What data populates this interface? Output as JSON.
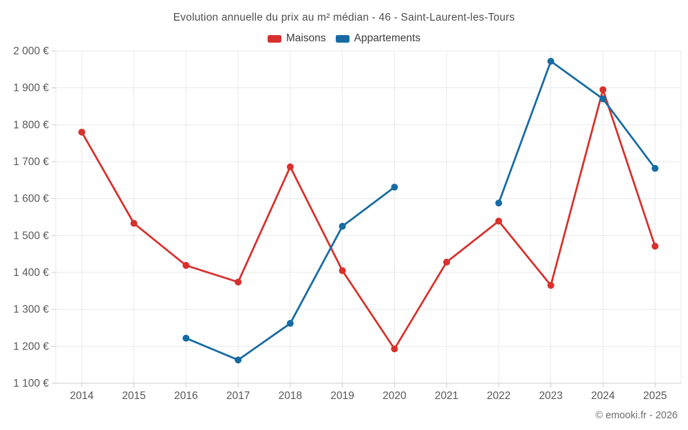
{
  "title": "Evolution annuelle du prix au m² médian - 46 - Saint-Laurent-les-Tours",
  "footer": "© emooki.fr - 2026",
  "legend": [
    {
      "name": "Maisons",
      "color": "#d7312d"
    },
    {
      "name": "Appartements",
      "color": "#176ba3"
    }
  ],
  "colors": {
    "background": "#ffffff",
    "grid_line": "#eaeaea",
    "axis_line": "#cccccc",
    "tick_mark": "#cccccc",
    "axis_text": "#585858",
    "title_text": "#4f4f4f",
    "footer_text": "#6b6b6b"
  },
  "chart_data": {
    "type": "line",
    "title": "Evolution annuelle du prix au m² médian - 46 - Saint-Laurent-les-Tours",
    "categories": [
      "2014",
      "2015",
      "2016",
      "2017",
      "2018",
      "2019",
      "2020",
      "2021",
      "2022",
      "2023",
      "2024",
      "2025"
    ],
    "series": [
      {
        "name": "Maisons",
        "color": "#d7312d",
        "values": [
          1780,
          1533,
          1419,
          1374,
          1686,
          1405,
          1193,
          1428,
          1539,
          1365,
          1895,
          1471
        ]
      },
      {
        "name": "Appartements",
        "color": "#176ba3",
        "values": [
          null,
          null,
          1222,
          1163,
          1262,
          1525,
          1631,
          null,
          1588,
          1972,
          1870,
          1682
        ]
      }
    ],
    "xlabel": "",
    "ylabel": "",
    "ylim": [
      1100,
      2000
    ],
    "ytick_step": 100,
    "ytick_labels": [
      "1 100 €",
      "1 200 €",
      "1 300 €",
      "1 400 €",
      "1 500 €",
      "1 600 €",
      "1 700 €",
      "1 800 €",
      "1 900 €",
      "2 000 €"
    ],
    "grid": true,
    "legend_position": "top",
    "marker_radius": 5,
    "line_width": 2.8
  }
}
